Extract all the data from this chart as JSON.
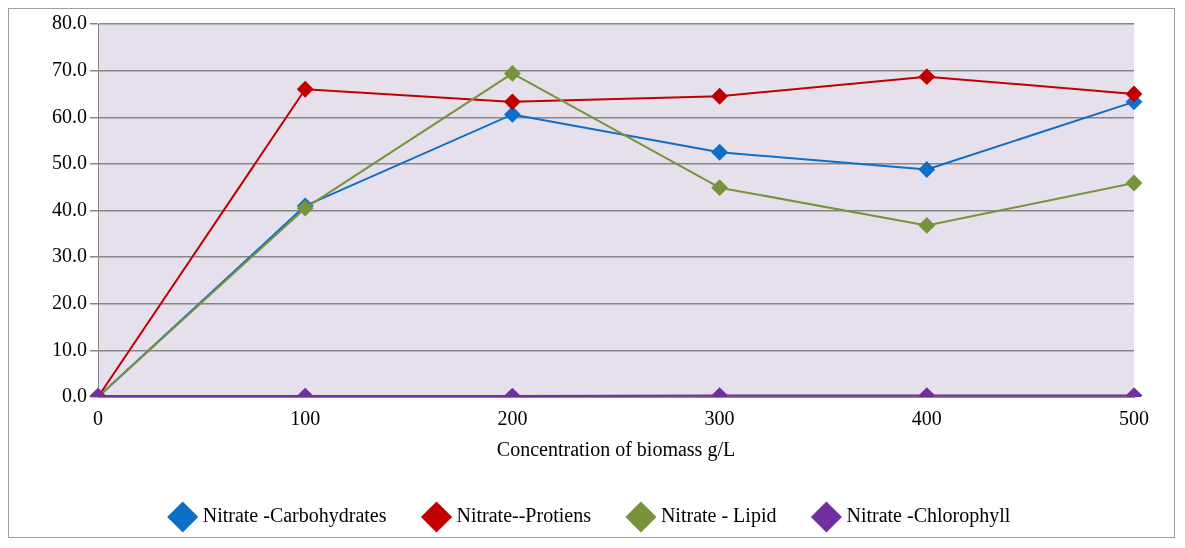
{
  "chart_data": {
    "type": "line",
    "xlabel": "Concentration of biomass g/L",
    "categories": [
      "0",
      "100",
      "200",
      "300",
      "400",
      "500"
    ],
    "series": [
      {
        "name": "Nitrate -Carbohydrates",
        "color": "#0f6fc6",
        "values": [
          0,
          41.0,
          60.6,
          52.5,
          48.8,
          63.3
        ]
      },
      {
        "name": "Nitrate--Protiens",
        "color": "#c00000",
        "values": [
          0,
          66.0,
          63.3,
          64.5,
          68.7,
          65.0
        ]
      },
      {
        "name": "Nitrate - Lipid",
        "color": "#77933c",
        "values": [
          0,
          40.5,
          69.4,
          44.9,
          36.8,
          45.9
        ]
      },
      {
        "name": "Nitrate -Chlorophyll",
        "color": "#7030a0",
        "values": [
          0.2,
          0.2,
          0.2,
          0.3,
          0.3,
          0.3
        ]
      }
    ],
    "ylim": [
      0,
      80
    ],
    "yticks": [
      {
        "value": 0,
        "label": "0.0"
      },
      {
        "value": 10,
        "label": "10.0"
      },
      {
        "value": 20,
        "label": "20.0"
      },
      {
        "value": 30,
        "label": "30.0"
      },
      {
        "value": 40,
        "label": "40.0"
      },
      {
        "value": 50,
        "label": "50.0"
      },
      {
        "value": 60,
        "label": "60.0"
      },
      {
        "value": 70,
        "label": "70.0"
      },
      {
        "value": 80,
        "label": "80.0"
      }
    ],
    "grid": "y",
    "legend": "bottom",
    "marker": "diamond",
    "line_style": "solid"
  }
}
